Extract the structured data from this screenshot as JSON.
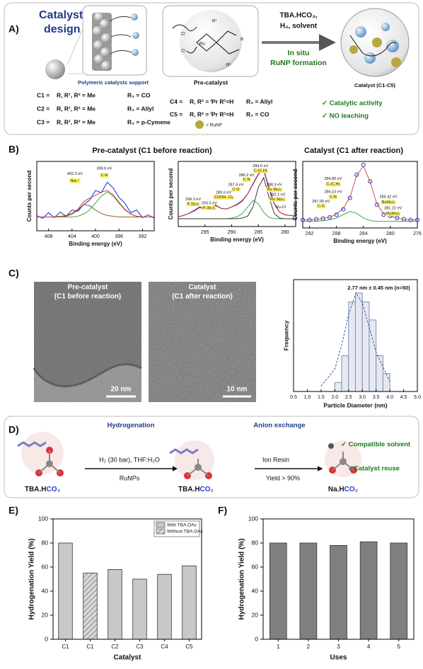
{
  "panel_labels": [
    "A)",
    "B)",
    "C)",
    "D)",
    "E)",
    "F)"
  ],
  "panel_a": {
    "title_lines": [
      "Catalyst",
      "design"
    ],
    "support_label": "Polymeric catalysts support",
    "precatalyst_label": "Pre-catalyst",
    "precatalyst_atoms": [
      "Cl",
      "Ru",
      "Cl",
      "R¹",
      "R¹",
      "R"
    ],
    "reaction_lines": [
      "TBA.HCO₃,",
      "H₂, solvent"
    ],
    "in_situ_lines": [
      "In situ",
      "RuNP formation"
    ],
    "catalyst_label": "Catalyst (C1-C5)",
    "catalysts": [
      [
        "C1 =",
        "R, R¹, R² = Me",
        "R₃ = CO"
      ],
      [
        "C2 =",
        "R, R¹, R² = Me",
        "R₃ = Allyl"
      ],
      [
        "C3 =",
        "R, R¹, R² = Me",
        "R₃ = p-Cymene"
      ],
      [
        "C4 =",
        "R, R² = ⁱPr  R¹=H",
        "R₃ = Allyl"
      ],
      [
        "C5 =",
        "R, R² = ⁱPr  R¹=H",
        "R₃ = CO"
      ]
    ],
    "runp_label": "= RuNP",
    "benefits": [
      "✓ Catalytic activity",
      "✓ NO leaching"
    ]
  },
  "panel_b": {
    "titles": [
      "Pre-catalyst  (C1 before reaction)",
      "Catalyst  (C1 after reaction)"
    ]
  },
  "panel_c": {
    "images": [
      {
        "title": "Pre-catalyst",
        "subtitle": "(C1 before reaction)",
        "scale": "20 nm"
      },
      {
        "title": "Catalyst",
        "subtitle": "(C1 after reaction)",
        "scale": "10 nm"
      }
    ]
  },
  "panel_d": {
    "title_left": "Hydrogenation",
    "title_right": "Anion exchange",
    "step1_top": "H₂ (30 bar), THF:H₂O",
    "step1_bottom": "RuNPs",
    "step2_top": "Ion Resin",
    "step2_bottom": "Yield > 90%",
    "compounds": [
      {
        "prefix": "TBA.H",
        "suffix": "CO₃"
      },
      {
        "prefix": "TBA.H",
        "suffix": "CO₂"
      },
      {
        "prefix": "Na.H",
        "suffix": "CO₂"
      }
    ],
    "benefits": [
      "✓ Compatible solvent",
      "✓Catalyst reuse"
    ]
  },
  "chart_data": [
    {
      "type": "xps",
      "x_label": "Binding energy (eV)",
      "y_label": "Counts per second",
      "xlim": [
        410,
        390
      ],
      "xticks": [
        408,
        404,
        400,
        396,
        392
      ],
      "ylim": [
        0,
        100
      ],
      "x": [
        410,
        409,
        408,
        407,
        406,
        405,
        404,
        403,
        402,
        401,
        400,
        399,
        398,
        397,
        396,
        395,
        394,
        393,
        392,
        391,
        390
      ],
      "series": [
        {
          "color": "#1f3fd6",
          "values": [
            22,
            18,
            26,
            19,
            27,
            21,
            30,
            28,
            38,
            44,
            58,
            55,
            70,
            62,
            48,
            40,
            26,
            30,
            19,
            23,
            18
          ]
        },
        {
          "color": "#8b4513",
          "values": [
            20,
            20,
            20,
            20,
            20,
            21,
            24,
            30,
            38,
            36,
            30,
            25,
            22,
            21,
            20,
            20,
            20,
            20,
            20,
            20,
            20
          ]
        },
        {
          "color": "#2ca02c",
          "values": [
            20,
            20,
            20,
            20,
            20,
            20,
            20,
            21,
            24,
            30,
            40,
            50,
            56,
            50,
            40,
            30,
            24,
            21,
            20,
            20,
            20
          ]
        },
        {
          "color": "#d62728",
          "values": [
            20,
            20,
            20,
            20,
            21,
            22,
            25,
            31,
            42,
            47,
            51,
            56,
            58,
            52,
            41,
            31,
            24,
            21,
            20,
            20,
            20
          ]
        }
      ],
      "annotations": [
        "402.3 eV",
        "NH₄⁺",
        "399.6 eV",
        "C-N"
      ]
    },
    {
      "type": "xps",
      "x_label": "Binding energy (eV)",
      "y_label": "Counts per second",
      "xlim": [
        300,
        278
      ],
      "xticks": [
        295,
        290,
        285,
        280
      ],
      "ylim": [
        0,
        100
      ],
      "x": [
        300,
        299,
        298,
        297,
        296,
        295,
        294,
        293,
        292,
        291,
        290,
        289,
        288,
        287,
        286,
        285,
        284,
        283,
        282,
        281,
        280,
        279,
        278
      ],
      "series": [
        {
          "color": "#1f3fd6",
          "values": [
            15,
            17,
            20,
            25,
            30,
            27,
            28,
            33,
            28,
            27,
            30,
            34,
            40,
            50,
            65,
            80,
            88,
            60,
            35,
            22,
            18,
            17,
            16
          ]
        },
        {
          "color": "#2ca02c",
          "values": [
            12,
            12,
            12,
            12,
            12,
            12,
            12,
            12,
            12,
            12,
            13,
            15,
            20,
            30,
            40,
            35,
            22,
            14,
            12,
            12,
            12,
            12,
            12
          ]
        },
        {
          "color": "#222222",
          "values": [
            12,
            12,
            12,
            12,
            12,
            12,
            12,
            12,
            12,
            12,
            12,
            12,
            13,
            16,
            30,
            60,
            75,
            45,
            20,
            13,
            12,
            12,
            12
          ]
        },
        {
          "color": "#d62728",
          "values": [
            15,
            17,
            20,
            24,
            29,
            27,
            28,
            32,
            28,
            27,
            30,
            33,
            39,
            50,
            66,
            81,
            86,
            58,
            34,
            22,
            18,
            17,
            16
          ]
        }
      ],
      "annotations": [
        "284.6 eV",
        "C-(C,H)",
        "286.2 eV",
        "C-N",
        "287.4 eV",
        "C-O",
        "289.0 eV",
        "COOH, Clₓ",
        "288.3 eV",
        "Ru 3d₃/₂",
        "282.1 eV",
        "Ru 3d₅/₂",
        "296.3 eV",
        "K 2p₁/₂",
        "293.5 eV",
        "K 2p₃/₂",
        "Ru-Cl"
      ]
    },
    {
      "type": "xps",
      "x_label": "Binding energy (eV)",
      "y_label": "Counts per second",
      "xlim": [
        293,
        276
      ],
      "xticks": [
        292,
        288,
        284,
        280,
        276
      ],
      "ylim": [
        0,
        100
      ],
      "x": [
        293,
        292,
        291,
        290,
        289,
        288,
        287,
        286,
        285,
        284,
        283,
        282,
        281,
        280,
        279,
        278,
        277,
        276
      ],
      "series": [
        {
          "color": "#2a3fd0",
          "marker": "circle",
          "values": [
            12,
            12,
            13,
            14,
            16,
            20,
            28,
            45,
            80,
            95,
            70,
            35,
            20,
            18,
            15,
            13,
            12,
            12
          ]
        },
        {
          "color": "#2ca02c",
          "values": [
            10,
            10,
            10,
            11,
            12,
            15,
            20,
            25,
            22,
            15,
            11,
            10,
            10,
            10,
            10,
            10,
            10,
            10
          ]
        },
        {
          "color": "#d04040",
          "values": [
            12,
            12,
            13,
            14,
            16,
            21,
            29,
            46,
            79,
            93,
            69,
            36,
            21,
            18,
            15,
            13,
            12,
            12
          ]
        }
      ],
      "annotations": [
        "284.80 eV",
        "C-(C,H)",
        "286.10 eV",
        "C-N",
        "287.00 eV",
        "C-O",
        "285.42 eV",
        "Ru3d₃/₂",
        "281.22 eV",
        "Ru3d₅/₂"
      ]
    },
    {
      "type": "histogram",
      "x_label": "Particle Diameter (nm)",
      "y_label": "Frequency",
      "annotation": "2.77 nm ± 0.45 nm (n=50)",
      "bins": [
        2.0,
        2.25,
        2.5,
        2.75,
        3.0,
        3.25,
        3.5,
        3.75,
        4.0
      ],
      "values": [
        1,
        4,
        10,
        11,
        10,
        8,
        4,
        2
      ],
      "color": "#e6e8f2",
      "xlim": [
        0.5,
        5.0
      ],
      "xticks": [
        0.5,
        {
          "value": 1,
          "label": "1.0"
        },
        1.5,
        {
          "value": 2,
          "label": "2.0"
        },
        2.5,
        {
          "value": 3,
          "label": "3.0"
        },
        3.5,
        {
          "value": 4,
          "label": "4.0"
        },
        4.5,
        {
          "value": 5,
          "label": "5.0"
        }
      ],
      "ylim": [
        0,
        12.5
      ],
      "fit": {
        "x": [
          1.5,
          2.0,
          2.25,
          2.5,
          2.77,
          3.0,
          3.25,
          3.5,
          4.0
        ],
        "values": [
          0.6,
          2.5,
          5.2,
          8.6,
          11,
          9.9,
          7.2,
          4.4,
          1.1
        ]
      }
    },
    {
      "type": "bar",
      "x_label": "Catalyst",
      "y_label": "Hydrogenation Yield (%)",
      "categories": [
        "C1",
        "C1",
        "C2",
        "C3",
        "C4",
        "C5"
      ],
      "series": [
        {
          "name": "With TBA.OAc",
          "color": "#c8c8c8",
          "values": [
            80,
            null,
            58,
            50,
            54,
            61
          ]
        },
        {
          "name": "Without TBA.OAc",
          "color": "#c8c8c8",
          "pattern": "hatch",
          "values": [
            null,
            55,
            null,
            null,
            null,
            null
          ]
        }
      ],
      "legend": "top-right",
      "ylim": [
        0,
        100
      ],
      "yticks": [
        0,
        20,
        40,
        60,
        80,
        100
      ]
    },
    {
      "type": "bar",
      "x_label": "Uses",
      "y_label": "Hydrogenation Yield (%)",
      "categories": [
        "1",
        "2",
        "3",
        "4",
        "5"
      ],
      "values": [
        80,
        80,
        78,
        81,
        80
      ],
      "color": "#7f7f7f",
      "ylim": [
        0,
        100
      ],
      "yticks": [
        0,
        20,
        40,
        60,
        80,
        100
      ]
    }
  ]
}
